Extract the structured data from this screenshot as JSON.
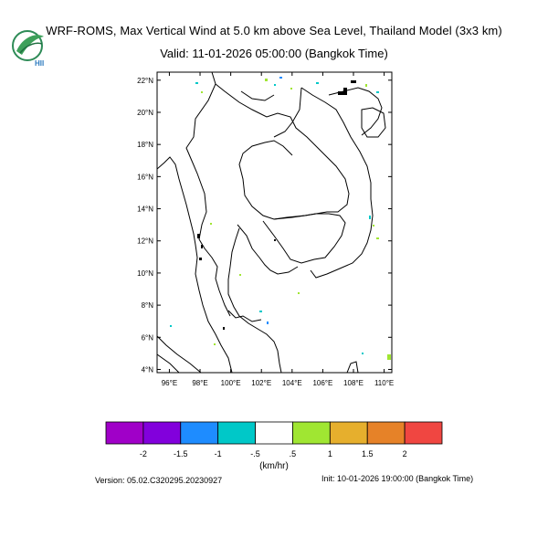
{
  "header": {
    "title": "WRF-ROMS, Max Vertical Wind at 5.0 km above Sea Level, Thailand Model (3x3 km)",
    "valid": "Valid: 11-01-2026 05:00:00 (Bangkok Time)"
  },
  "logo": {
    "icon": "hii-logo",
    "text": "HII",
    "color": "#2e8b57"
  },
  "map": {
    "lat_ticks": [
      {
        "value": 22,
        "label": "22°N"
      },
      {
        "value": 20,
        "label": "20°N"
      },
      {
        "value": 18,
        "label": "18°N"
      },
      {
        "value": 16,
        "label": "16°N"
      },
      {
        "value": 14,
        "label": "14°N"
      },
      {
        "value": 12,
        "label": "12°N"
      },
      {
        "value": 10,
        "label": "10°N"
      },
      {
        "value": 8,
        "label": "8°N"
      },
      {
        "value": 6,
        "label": "6°N"
      },
      {
        "value": 4,
        "label": "4°N"
      }
    ],
    "lon_ticks": [
      {
        "value": 96,
        "label": "96°E"
      },
      {
        "value": 98,
        "label": "98°E"
      },
      {
        "value": 100,
        "label": "100°E"
      },
      {
        "value": 102,
        "label": "102°E"
      },
      {
        "value": 104,
        "label": "104°E"
      },
      {
        "value": 106,
        "label": "106°E"
      },
      {
        "value": 108,
        "label": "108°E"
      },
      {
        "value": 110,
        "label": "110°E"
      }
    ],
    "lat_range": [
      3.8,
      22.5
    ],
    "lon_range": [
      95.2,
      110.5
    ]
  },
  "colorbar": {
    "colors": [
      "#a000c8",
      "#8200dc",
      "#1e8cff",
      "#00c8c8",
      "#ffffff",
      "#a0e632",
      "#e6af2d",
      "#e68228",
      "#f04641"
    ],
    "labels": [
      "-2",
      "-1.5",
      "-1",
      "-.5",
      ".5",
      "1",
      "1.5",
      "2"
    ],
    "units": "(km/hr)"
  },
  "footer": {
    "version": "Version: 05.02.C320295.20230927",
    "init": "Init: 10-01-2026 19:00:00 (Bangkok Time)"
  }
}
